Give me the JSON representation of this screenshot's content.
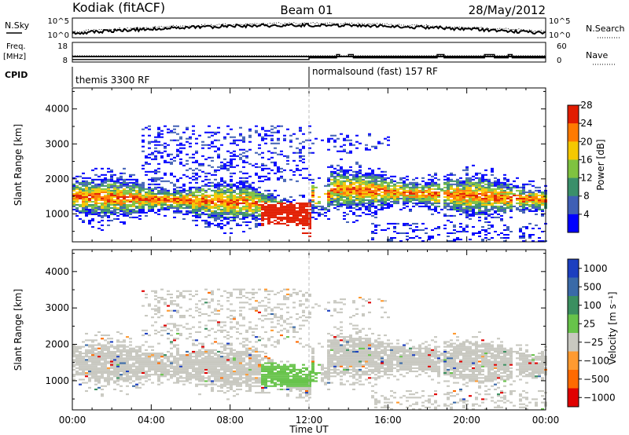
{
  "header": {
    "station": "Kodiak (fitACF)",
    "beam": "Beam 01",
    "date": "28/May/2012"
  },
  "noise_panel": {
    "left_label": "N.Sky",
    "right_label": "N.Search",
    "left_ticks": [
      "10^5",
      "10^0"
    ],
    "right_ticks": [
      "10^5",
      "10^0"
    ]
  },
  "freq_panel": {
    "left_label_1": "Freq.",
    "left_label_2": "[MHz]",
    "right_label": "Nave",
    "left_ticks": [
      "18",
      "8"
    ],
    "right_ticks": [
      "60",
      "0"
    ],
    "freq_mhz": 8,
    "nave_steps": [
      [
        0,
        12.0,
        3
      ],
      [
        12.0,
        13.4,
        8
      ],
      [
        13.4,
        13.55,
        18
      ],
      [
        13.55,
        14.0,
        12
      ],
      [
        14.0,
        14.25,
        18
      ],
      [
        14.25,
        18.5,
        8
      ],
      [
        18.5,
        18.85,
        18
      ],
      [
        18.85,
        20.9,
        8
      ],
      [
        20.9,
        21.4,
        18
      ],
      [
        21.4,
        22.1,
        8
      ],
      [
        22.1,
        22.3,
        18
      ],
      [
        22.3,
        24,
        8
      ]
    ]
  },
  "cpid": {
    "label": "CPID",
    "seg1": "themis 3300 RF",
    "seg2": "normalsound (fast) 157 RF",
    "switch_hour": 12
  },
  "chart_data": [
    {
      "type": "heatmap",
      "name": "power",
      "ylabel": "Slant Range [km]",
      "ylim": [
        200,
        4600
      ],
      "yticks": [
        1000,
        2000,
        3000,
        4000
      ],
      "xlim": [
        0,
        24
      ],
      "x_tick_labels": [
        "00:00",
        "04:00",
        "08:00",
        "12:00",
        "16:00",
        "20:00",
        "00:00"
      ],
      "colorbar_label": "Power [dB]",
      "colorbar_ticks": [
        "4",
        "8",
        "12",
        "16",
        "20",
        "24",
        "28"
      ],
      "colors": [
        "#0000ff",
        "#3f5fb5",
        "#3a8f6a",
        "#7fc240",
        "#f5c800",
        "#ff7a00",
        "#e11c00"
      ]
    },
    {
      "type": "heatmap",
      "name": "velocity",
      "ylabel": "Slant Range [km]",
      "ylim": [
        200,
        4600
      ],
      "yticks": [
        1000,
        2000,
        3000,
        4000
      ],
      "xlim": [
        0,
        24
      ],
      "x_tick_labels": [
        "00:00",
        "04:00",
        "08:00",
        "12:00",
        "16:00",
        "20:00",
        "00:00"
      ],
      "xlabel": "Time UT",
      "colorbar_label": "Velocity [m s⁻¹]",
      "colorbar_ticks": [
        "1000",
        "500",
        "100",
        "25",
        "−25",
        "−100",
        "−500",
        "−1000"
      ],
      "colors": [
        "#1c3fc0",
        "#3a6aa8",
        "#3b8f60",
        "#67c34a",
        "#c8c8c0",
        "#ff9a30",
        "#ff6a00",
        "#e00000"
      ]
    }
  ]
}
